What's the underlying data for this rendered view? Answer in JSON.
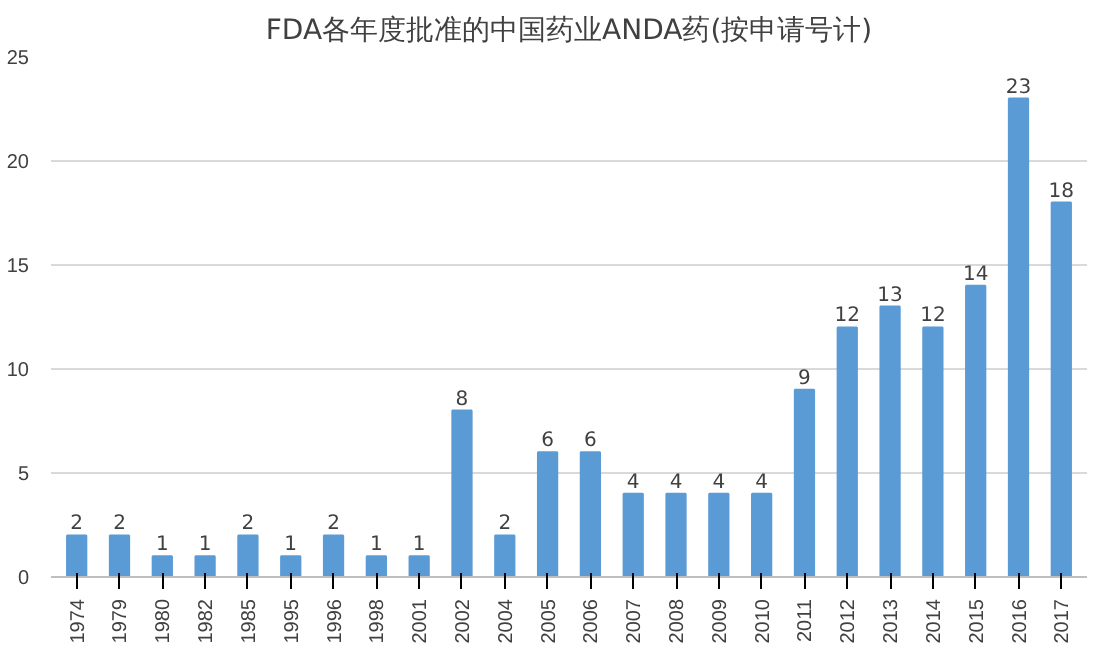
{
  "chart_data": {
    "type": "bar",
    "title": "FDA各年度批准的中国药业ANDA药(按申请号计)",
    "categories": [
      "1974",
      "1979",
      "1980",
      "1982",
      "1985",
      "1995",
      "1996",
      "1998",
      "2001",
      "2002",
      "2004",
      "2005",
      "2006",
      "2007",
      "2008",
      "2009",
      "2010",
      "2011",
      "2012",
      "2013",
      "2014",
      "2015",
      "2016",
      "2017"
    ],
    "values": [
      2,
      2,
      1,
      1,
      2,
      1,
      2,
      1,
      1,
      8,
      2,
      6,
      6,
      4,
      4,
      4,
      4,
      9,
      12,
      13,
      12,
      14,
      23,
      18
    ],
    "color": "#5b9bd5",
    "ylim": [
      0,
      25
    ],
    "yticks": [
      0,
      5,
      10,
      15,
      20,
      25
    ],
    "grid": "y",
    "data_labels": true
  }
}
